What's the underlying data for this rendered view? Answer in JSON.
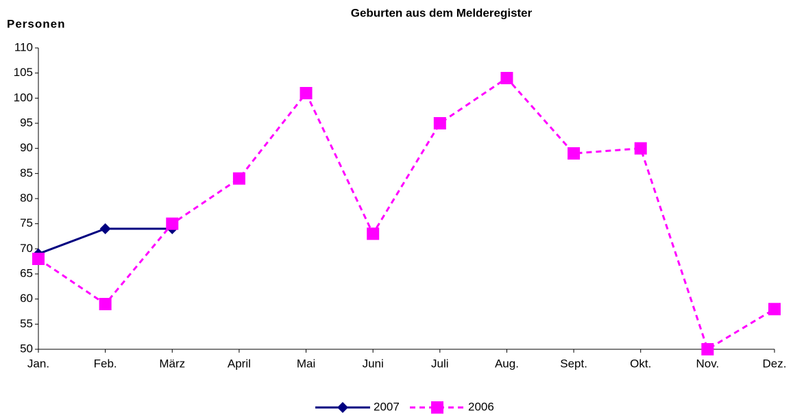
{
  "chart_data": {
    "type": "line",
    "title": "Geburten aus dem Melderegister",
    "y_label": "Personen",
    "categories": [
      "Jan.",
      "Feb.",
      "März",
      "April",
      "Mai",
      "Juni",
      "Juli",
      "Aug.",
      "Sept.",
      "Okt.",
      "Nov.",
      "Dez."
    ],
    "series": [
      {
        "name": "2007",
        "color": "#000080",
        "dashed": false,
        "marker": "diamond",
        "values": [
          69,
          74,
          74,
          null,
          null,
          null,
          null,
          null,
          null,
          null,
          null,
          null
        ]
      },
      {
        "name": "2006",
        "color": "#ff00ff",
        "dashed": true,
        "marker": "square",
        "values": [
          68,
          59,
          75,
          84,
          101,
          73,
          95,
          104,
          89,
          90,
          50,
          58
        ]
      }
    ],
    "ylim": [
      50,
      110
    ],
    "yticks": [
      50,
      55,
      60,
      65,
      70,
      75,
      80,
      85,
      90,
      95,
      100,
      105,
      110
    ],
    "grid": false,
    "legend": "bottom"
  }
}
